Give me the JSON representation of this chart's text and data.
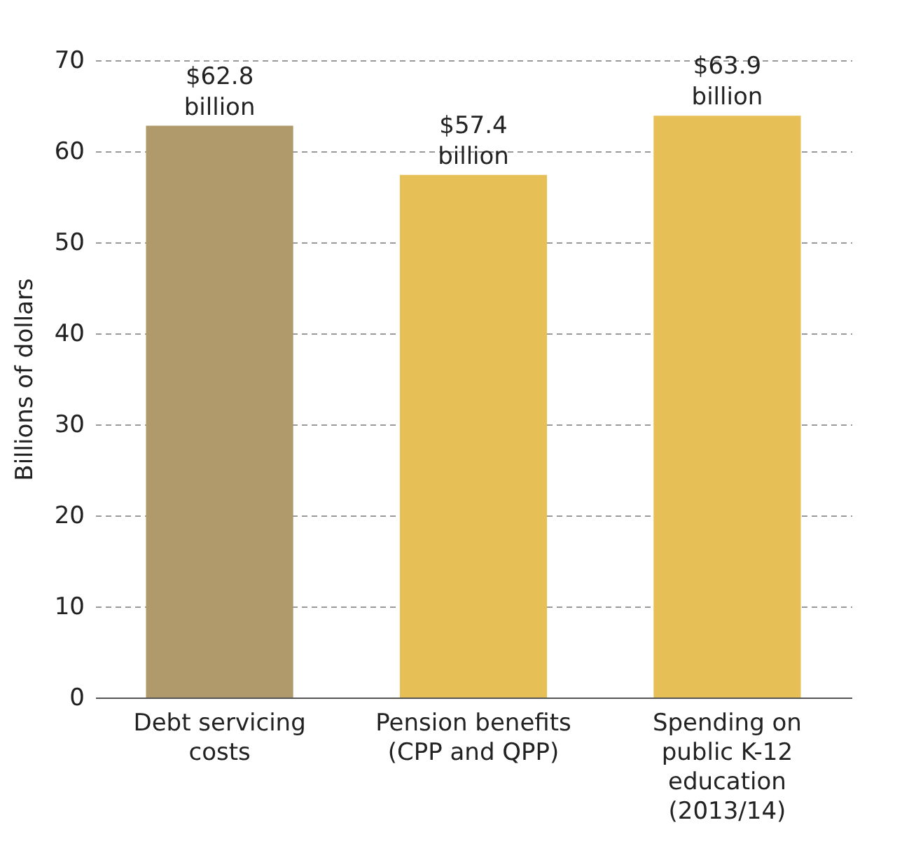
{
  "chart_data": {
    "type": "bar",
    "ylabel": "Billions of dollars",
    "categories": [
      "Debt servicing costs",
      "Pension benefits (CPP and QPP)",
      "Spending on public  K-12 education (2013/14)"
    ],
    "values": [
      62.8,
      57.4,
      63.9
    ],
    "colors": [
      "#b09a6b",
      "#e6c056",
      "#e6c056"
    ],
    "value_labels": [
      "$62.8 billion",
      "$57.4 billion",
      "$63.9 billion"
    ],
    "ylim": [
      0,
      70
    ],
    "yticks": [
      0,
      10,
      20,
      30,
      40,
      50,
      60,
      70
    ],
    "grid": "y"
  }
}
